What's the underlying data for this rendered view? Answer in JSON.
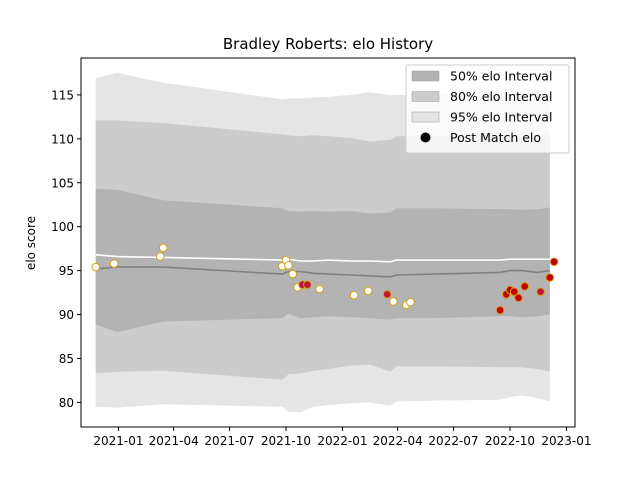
{
  "chart_data": {
    "type": "scatter",
    "title": "Bradley Roberts: elo History",
    "xlabel": "",
    "ylabel": "elo score",
    "xlim": [
      "2020-11-01",
      "2023-01-15"
    ],
    "ylim": [
      77.2,
      119.2
    ],
    "grid": false,
    "legend_position": "top-right",
    "x_ticks": [
      {
        "date": "2021-01-01",
        "label": "2021-01"
      },
      {
        "date": "2021-04-01",
        "label": "2021-04"
      },
      {
        "date": "2021-07-01",
        "label": "2021-07"
      },
      {
        "date": "2021-10-01",
        "label": "2021-10"
      },
      {
        "date": "2022-01-01",
        "label": "2022-01"
      },
      {
        "date": "2022-04-01",
        "label": "2022-04"
      },
      {
        "date": "2022-07-01",
        "label": "2022-07"
      },
      {
        "date": "2022-10-01",
        "label": "2022-10"
      },
      {
        "date": "2023-01-01",
        "label": "2023-01"
      }
    ],
    "y_ticks": [
      80,
      85,
      90,
      95,
      100,
      105,
      110,
      115
    ],
    "legend": [
      {
        "label": "50% elo Interval",
        "color": "#b3b3b3"
      },
      {
        "label": "80% elo Interval",
        "color": "#cccccc"
      },
      {
        "label": "95% elo Interval",
        "color": "#e5e5e5"
      },
      {
        "label": "Post Match elo",
        "color": "#000000"
      }
    ],
    "interval_dates": [
      "2020-11-25",
      "2020-12-30",
      "2021-03-15",
      "2021-09-25",
      "2021-10-05",
      "2021-10-25",
      "2021-11-15",
      "2021-12-10",
      "2022-01-15",
      "2022-02-15",
      "2022-03-20",
      "2022-03-30",
      "2022-06-01",
      "2022-09-15",
      "2022-10-01",
      "2022-10-20",
      "2022-11-15",
      "2022-12-05"
    ],
    "center_line": [
      95.2,
      95.4,
      95.4,
      94.6,
      94.9,
      94.9,
      94.7,
      94.6,
      94.5,
      94.4,
      94.3,
      94.5,
      94.6,
      94.8,
      95.0,
      95.0,
      94.8,
      95.0
    ],
    "mean_line": [
      96.8,
      96.6,
      96.5,
      96.2,
      96.3,
      96.1,
      96.1,
      96.2,
      96.1,
      96.1,
      96.0,
      96.2,
      96.2,
      96.2,
      96.3,
      96.3,
      96.3,
      96.3
    ],
    "band_50": {
      "lower": [
        88.9,
        88.0,
        89.2,
        89.6,
        90.1,
        89.6,
        89.7,
        89.8,
        89.7,
        89.6,
        89.4,
        89.6,
        89.6,
        89.8,
        89.8,
        89.7,
        89.8,
        90.0
      ],
      "upper": [
        104.3,
        104.2,
        103.0,
        102.1,
        101.8,
        101.7,
        101.8,
        101.7,
        101.8,
        101.5,
        101.6,
        102.1,
        102.1,
        102.0,
        102.0,
        101.9,
        102.0,
        102.2
      ]
    },
    "band_80": {
      "lower": [
        83.3,
        83.5,
        83.6,
        82.6,
        83.2,
        83.3,
        83.6,
        83.8,
        84.2,
        84.3,
        83.5,
        84.1,
        84.1,
        84.0,
        84.0,
        84.0,
        83.8,
        83.5
      ],
      "upper": [
        112.1,
        112.1,
        111.8,
        110.5,
        110.4,
        110.3,
        110.4,
        110.3,
        110.1,
        109.7,
        109.9,
        110.3,
        110.3,
        110.4,
        110.4,
        110.3,
        110.4,
        110.5
      ]
    },
    "band_95": {
      "lower": [
        79.5,
        79.4,
        79.8,
        79.5,
        78.9,
        78.9,
        79.5,
        79.7,
        79.9,
        80.0,
        79.6,
        80.1,
        80.2,
        80.3,
        80.6,
        80.8,
        80.5,
        80.1
      ],
      "upper": [
        116.9,
        117.5,
        116.4,
        114.5,
        114.6,
        114.6,
        114.7,
        114.8,
        115.0,
        115.3,
        115.0,
        115.0,
        115.0,
        115.0,
        115.0,
        115.0,
        115.0,
        115.0
      ]
    },
    "series": [
      {
        "name": "Post Match elo",
        "points": [
          {
            "date": "2020-11-25",
            "y": 95.4,
            "result": "win"
          },
          {
            "date": "2020-12-25",
            "y": 95.8,
            "result": "win"
          },
          {
            "date": "2021-03-10",
            "y": 96.6,
            "result": "win"
          },
          {
            "date": "2021-03-15",
            "y": 97.6,
            "result": "win"
          },
          {
            "date": "2021-09-25",
            "y": 95.5,
            "result": "win"
          },
          {
            "date": "2021-10-01",
            "y": 96.2,
            "result": "win"
          },
          {
            "date": "2021-10-05",
            "y": 95.6,
            "result": "win"
          },
          {
            "date": "2021-10-12",
            "y": 94.6,
            "result": "win"
          },
          {
            "date": "2021-10-20",
            "y": 93.1,
            "result": "win"
          },
          {
            "date": "2021-10-28",
            "y": 93.4,
            "result": "loss"
          },
          {
            "date": "2021-11-05",
            "y": 93.4,
            "result": "loss"
          },
          {
            "date": "2021-11-25",
            "y": 92.9,
            "result": "win"
          },
          {
            "date": "2022-01-20",
            "y": 92.2,
            "result": "win"
          },
          {
            "date": "2022-02-12",
            "y": 92.7,
            "result": "win"
          },
          {
            "date": "2022-03-15",
            "y": 92.3,
            "result": "loss"
          },
          {
            "date": "2022-03-25",
            "y": 91.5,
            "result": "win"
          },
          {
            "date": "2022-04-15",
            "y": 91.1,
            "result": "win"
          },
          {
            "date": "2022-04-22",
            "y": 91.4,
            "result": "win"
          },
          {
            "date": "2022-09-15",
            "y": 90.5,
            "result": "draw"
          },
          {
            "date": "2022-09-25",
            "y": 92.3,
            "result": "draw"
          },
          {
            "date": "2022-10-01",
            "y": 92.8,
            "result": "draw"
          },
          {
            "date": "2022-10-08",
            "y": 92.6,
            "result": "draw"
          },
          {
            "date": "2022-10-15",
            "y": 91.9,
            "result": "draw"
          },
          {
            "date": "2022-10-25",
            "y": 93.2,
            "result": "draw"
          },
          {
            "date": "2022-11-20",
            "y": 92.6,
            "result": "loss"
          },
          {
            "date": "2022-12-05",
            "y": 94.2,
            "result": "draw"
          },
          {
            "date": "2022-12-12",
            "y": 96.0,
            "result": "draw"
          }
        ]
      }
    ],
    "colors": {
      "band_50": "#b3b3b3",
      "band_80": "#cccccc",
      "band_95": "#e5e5e5",
      "center_line": "#808080",
      "mean_line": "#ffffff",
      "win_fill": "#ffffff",
      "loss_fill": "#c0143c",
      "draw_fill": "#c00000",
      "marker_edge": "#d4a017"
    }
  }
}
